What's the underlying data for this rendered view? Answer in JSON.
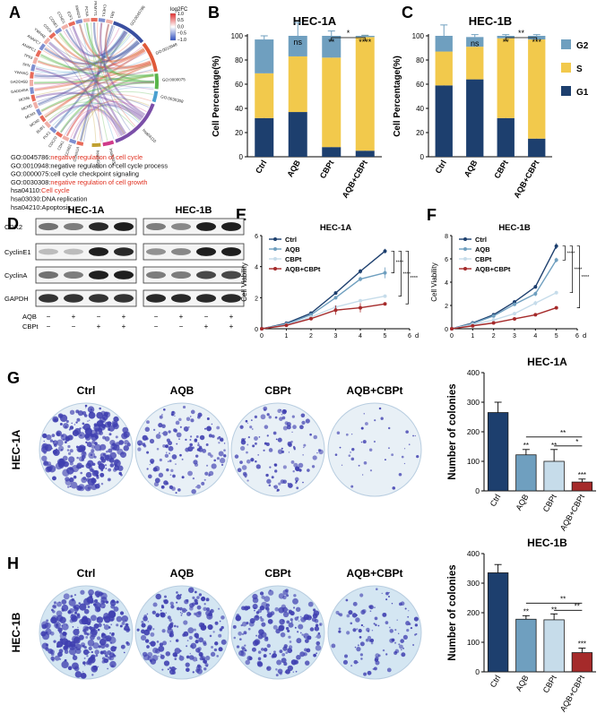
{
  "colors": {
    "navy": "#1d3f6e",
    "steel": "#6f9fbf",
    "light": "#c6dcea",
    "red": "#a52a2a",
    "yellow": "#f2c94c",
    "highlight": "#e03020",
    "plate_blue": "#3f3fb0"
  },
  "panels": {
    "a": "A",
    "b": "B",
    "c": "C",
    "d": "D",
    "e": "E",
    "f": "F",
    "g": "G",
    "h": "H"
  },
  "panel_a": {
    "scale_title": "log2FC",
    "scale_ticks": [
      "1.0",
      "0.5",
      "0.0",
      "−0.5",
      "−1.0"
    ],
    "gene_labels": [
      "CDKN1A",
      "CCNB1",
      "CDK1",
      "CDC20",
      "PLK1",
      "BUB1",
      "MCM2",
      "MCM3",
      "MCM5",
      "MCM6",
      "GADD45A",
      "GADD45B",
      "YWHAG",
      "SFN",
      "TP53",
      "ANAPC1",
      "ANAPC7",
      "YWHAE",
      "CDC6",
      "CCNE1",
      "CCND1",
      "E2F1",
      "SMAD3",
      "PCNA",
      "PKMYT1",
      "CHEK1",
      "RB1"
    ],
    "gene_visible_labels": [
      "MCM5",
      "YWHAG",
      "GADD45B",
      "SFN",
      "TP53",
      "ANAPC7",
      "MCM6",
      "YWHAE"
    ],
    "term_labels": [
      "GO:0045786",
      "GO:0010948",
      "GO:0000075",
      "GO:0030308",
      "hsa04110",
      "hsa03030",
      "hsa04210"
    ],
    "legend": [
      {
        "id": "GO:0045786:",
        "desc": "negative regulation of cell cycle",
        "highlight": true
      },
      {
        "id": "GO:0010948:",
        "desc": "negative regulation of cell cycle process",
        "highlight": false
      },
      {
        "id": "GO:0000075:",
        "desc": "cell cycle checkpoint signaling",
        "highlight": false
      },
      {
        "id": "GO:0030308:",
        "desc": "negative regulation of cell growth",
        "highlight": true
      },
      {
        "id": "hsa04110:",
        "desc": "Cell cycle",
        "highlight": true
      },
      {
        "id": "hsa03030:",
        "desc": "DNA replication",
        "highlight": false
      },
      {
        "id": "hsa04210:",
        "desc": "Apoptosis",
        "highlight": false
      }
    ]
  },
  "panel_d": {
    "cell_lines": [
      "HEC-1A",
      "HEC-1B"
    ],
    "proteins": [
      "CDK2",
      "CyclinE1",
      "CyclinA",
      "GAPDH"
    ],
    "treat_labels": [
      "AQB",
      "CBPt"
    ],
    "aqb_signs": [
      "−",
      "+",
      "−",
      "+"
    ],
    "cbpt_signs": [
      "−",
      "−",
      "+",
      "+"
    ],
    "band_intensity": {
      "HEC-1A": [
        [
          0.55,
          0.5,
          0.9,
          0.95
        ],
        [
          0.2,
          0.2,
          0.95,
          0.9
        ],
        [
          0.55,
          0.5,
          0.95,
          0.95
        ],
        [
          0.85,
          0.85,
          0.85,
          0.85
        ]
      ],
      "HEC-1B": [
        [
          0.5,
          0.45,
          0.95,
          0.95
        ],
        [
          0.4,
          0.45,
          0.95,
          0.95
        ],
        [
          0.5,
          0.5,
          0.75,
          0.75
        ],
        [
          0.9,
          0.9,
          0.9,
          0.9
        ]
      ]
    }
  },
  "chart_data": [
    {
      "id": "B",
      "type": "bar",
      "stacked": true,
      "title": "HEC-1A",
      "ylabel": "Cell Percentage(%)",
      "xlabel": "",
      "ylim": [
        0,
        100
      ],
      "yticks": [
        "0",
        "20",
        "40",
        "60",
        "80",
        "100"
      ],
      "categories": [
        "Ctrl",
        "AQB",
        "CBPt",
        "AQB+CBPt"
      ],
      "series": [
        {
          "name": "G1",
          "values": [
            32,
            37,
            8,
            5
          ],
          "errors": [
            2,
            1,
            6,
            1
          ]
        },
        {
          "name": "S",
          "values": [
            37,
            46,
            74,
            94
          ],
          "errors": [
            2,
            2,
            3,
            1
          ]
        },
        {
          "name": "G2",
          "values": [
            28,
            17,
            18,
            1
          ],
          "errors": [
            3,
            11,
            4,
            0.5
          ]
        }
      ],
      "sig_labels": [
        "",
        "ns",
        "**",
        "****"
      ],
      "brackets": [
        {
          "label": "*",
          "from": 2,
          "to": 3
        }
      ]
    },
    {
      "id": "C",
      "type": "bar",
      "stacked": true,
      "title": "HEC-1B",
      "ylabel": "Cell Percentage(%)",
      "xlabel": "",
      "ylim": [
        0,
        100
      ],
      "yticks": [
        "0",
        "20",
        "40",
        "60",
        "80",
        "100"
      ],
      "categories": [
        "Ctrl",
        "AQB",
        "CBPt",
        "AQB+CBPt"
      ],
      "legend": [
        "G2",
        "S",
        "G1"
      ],
      "series": [
        {
          "name": "G1",
          "values": [
            59,
            64,
            32,
            15
          ],
          "errors": [
            18,
            17,
            4,
            4
          ]
        },
        {
          "name": "S",
          "values": [
            28,
            27,
            66,
            82
          ],
          "errors": [
            2,
            3,
            1,
            2
          ]
        },
        {
          "name": "G2",
          "values": [
            13,
            8,
            2,
            3
          ],
          "errors": [
            9,
            2,
            1,
            1
          ]
        }
      ],
      "sig_labels": [
        "",
        "ns",
        "**",
        "***"
      ],
      "brackets": [
        {
          "label": "**",
          "from": 2,
          "to": 3
        }
      ]
    },
    {
      "id": "E",
      "type": "line",
      "title": "HEC-1A",
      "ylabel": "Cell Viability",
      "xlabel": "d",
      "xlim": [
        0,
        6
      ],
      "ylim": [
        0,
        6
      ],
      "xticks": [
        "0",
        "1",
        "2",
        "3",
        "4",
        "5",
        "6"
      ],
      "yticks": [
        "0",
        "2",
        "4",
        "6"
      ],
      "x": [
        0,
        1,
        2,
        3,
        4,
        5
      ],
      "series": [
        {
          "name": "Ctrl",
          "values": [
            0,
            0.35,
            1.0,
            2.3,
            3.7,
            5.0
          ],
          "errors": [
            0,
            0.05,
            0.08,
            0.1,
            0.15,
            0.15
          ]
        },
        {
          "name": "AQB",
          "values": [
            0,
            0.3,
            0.9,
            2.0,
            3.2,
            3.6
          ],
          "errors": [
            0,
            0.05,
            0.08,
            0.1,
            0.15,
            0.35
          ]
        },
        {
          "name": "CBPt",
          "values": [
            0,
            0.25,
            0.75,
            1.4,
            1.8,
            2.1
          ],
          "errors": [
            0,
            0.04,
            0.05,
            0.08,
            0.1,
            0.08
          ]
        },
        {
          "name": "AQB+CBPt",
          "values": [
            0,
            0.22,
            0.65,
            1.2,
            1.35,
            1.6
          ],
          "errors": [
            0,
            0.04,
            0.05,
            0.3,
            0.3,
            0.08
          ]
        }
      ],
      "brackets": [
        {
          "label": "****"
        },
        {
          "label": "****"
        },
        {
          "label": "****"
        }
      ]
    },
    {
      "id": "F",
      "type": "line",
      "title": "HEC-1B",
      "ylabel": "Cell Viability",
      "xlabel": "d",
      "xlim": [
        0,
        6
      ],
      "ylim": [
        0,
        8
      ],
      "xticks": [
        "0",
        "1",
        "2",
        "3",
        "4",
        "5",
        "6"
      ],
      "yticks": [
        "0",
        "2",
        "4",
        "6",
        "8"
      ],
      "x": [
        0,
        1,
        2,
        3,
        4,
        5
      ],
      "series": [
        {
          "name": "Ctrl",
          "values": [
            0,
            0.5,
            1.2,
            2.3,
            3.6,
            7.1
          ],
          "errors": [
            0,
            0.05,
            0.1,
            0.15,
            0.15,
            0.25
          ]
        },
        {
          "name": "AQB",
          "values": [
            0,
            0.45,
            1.1,
            2.1,
            3.0,
            5.9
          ],
          "errors": [
            0,
            0.05,
            0.1,
            0.1,
            0.2,
            0.2
          ]
        },
        {
          "name": "CBPt",
          "values": [
            0,
            0.35,
            0.75,
            1.3,
            2.2,
            3.1
          ],
          "errors": [
            0,
            0.04,
            0.05,
            0.08,
            0.2,
            0.15
          ]
        },
        {
          "name": "AQB+CBPt",
          "values": [
            0,
            0.25,
            0.5,
            0.85,
            1.2,
            1.8
          ],
          "errors": [
            0,
            0.04,
            0.04,
            0.05,
            0.08,
            0.08
          ]
        }
      ],
      "brackets": [
        {
          "label": "****"
        },
        {
          "label": "****"
        },
        {
          "label": "****"
        }
      ]
    },
    {
      "id": "G",
      "type": "bar",
      "title": "HEC-1A",
      "ylabel": "Number of colonies",
      "xlabel": "",
      "ylim": [
        0,
        400
      ],
      "yticks": [
        "0",
        "100",
        "200",
        "300",
        "400"
      ],
      "categories": [
        "Ctrl",
        "AQB",
        "CBPt",
        "AQB+CBPt"
      ],
      "values": [
        265,
        122,
        100,
        30
      ],
      "errors": [
        35,
        18,
        40,
        10
      ],
      "sig_labels": [
        "",
        "**",
        "**",
        "***"
      ],
      "brackets": [
        {
          "label": "**",
          "from": 1,
          "to": 3
        },
        {
          "label": "*",
          "from": 2,
          "to": 3
        }
      ]
    },
    {
      "id": "H",
      "type": "bar",
      "title": "HEC-1B",
      "ylabel": "Number of colonies",
      "xlabel": "",
      "ylim": [
        0,
        400
      ],
      "yticks": [
        "0",
        "100",
        "200",
        "300",
        "400"
      ],
      "categories": [
        "Ctrl",
        "AQB",
        "CBPt",
        "AQB+CBPt"
      ],
      "values": [
        335,
        178,
        176,
        65
      ],
      "errors": [
        28,
        12,
        20,
        15
      ],
      "sig_labels": [
        "",
        "**",
        "**",
        "***"
      ],
      "brackets": [
        {
          "label": "**",
          "from": 1,
          "to": 3
        },
        {
          "label": "**",
          "from": 2,
          "to": 3
        }
      ]
    }
  ],
  "plates": {
    "rows": [
      {
        "label": "HEC-1A",
        "densities": [
          1.0,
          0.55,
          0.45,
          0.15
        ]
      },
      {
        "label": "HEC-1B",
        "densities": [
          1.0,
          0.75,
          0.7,
          0.4
        ]
      }
    ],
    "col_labels": [
      "Ctrl",
      "AQB",
      "CBPt",
      "AQB+CBPt"
    ]
  }
}
